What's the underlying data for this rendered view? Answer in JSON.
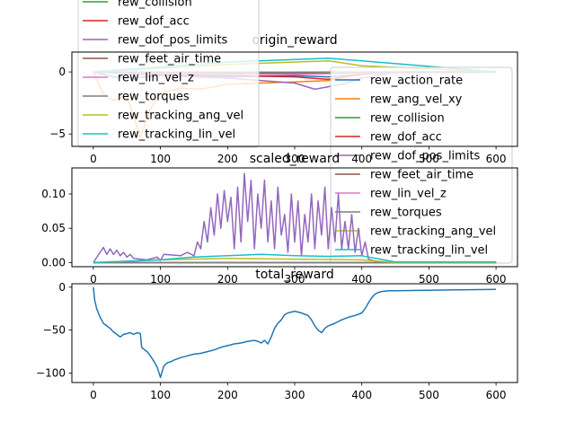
{
  "chart_data": [
    {
      "type": "line",
      "title": "origin_reward",
      "xlabel": "",
      "ylabel": "",
      "xlim": [
        -32,
        632
      ],
      "ylim": [
        -6.0,
        1.6
      ],
      "xticks": [
        0,
        100,
        200,
        300,
        400,
        500,
        600
      ],
      "xtick_labels": [
        "0",
        "100",
        "200",
        "300",
        "400",
        "500",
        "600"
      ],
      "yticks": [
        -5,
        0
      ],
      "ytick_labels": [
        "−5",
        "0"
      ],
      "legends": [
        {
          "placement": "upper-left (overflowing above axes)",
          "entries": [
            "rew_collision",
            "rew_dof_acc",
            "rew_dof_pos_limits",
            "rew_feet_air_time",
            "rew_lin_vel_z",
            "rew_torques",
            "rew_tracking_ang_vel",
            "rew_tracking_lin_vel"
          ]
        },
        {
          "placement": "right",
          "entries": [
            "rew_action_rate",
            "rew_ang_vel_xy",
            "rew_collision",
            "rew_dof_acc",
            "rew_dof_pos_limits",
            "rew_feet_air_time",
            "rew_lin_vel_z",
            "rew_torques",
            "rew_tracking_ang_vel",
            "rew_tracking_lin_vel"
          ]
        }
      ],
      "series": [
        {
          "name": "rew_action_rate",
          "color": "#1f77b4",
          "x": [
            0,
            30,
            60,
            100,
            150,
            200,
            250,
            300,
            350,
            400,
            450,
            500,
            600
          ],
          "y": [
            0,
            -0.4,
            -0.5,
            -0.3,
            -0.3,
            -0.4,
            -0.35,
            -0.3,
            -0.4,
            -0.2,
            -0.05,
            -0.03,
            -0.02
          ]
        },
        {
          "name": "rew_ang_vel_xy",
          "color": "#ff7f0e",
          "x": [
            0,
            15,
            30,
            50,
            70,
            85,
            100,
            130,
            160,
            200,
            250,
            300,
            350,
            400,
            450,
            600
          ],
          "y": [
            0,
            -1.8,
            -2.3,
            -1.9,
            -5.3,
            -3.0,
            -1.7,
            -1.3,
            -1.4,
            -1.0,
            -0.9,
            -0.8,
            -0.7,
            -0.1,
            0,
            0
          ]
        },
        {
          "name": "rew_collision",
          "color": "#2ca02c",
          "x": [
            0,
            100,
            200,
            300,
            400,
            500,
            600
          ],
          "y": [
            0,
            -0.02,
            -0.02,
            -0.02,
            -0.01,
            0,
            0
          ]
        },
        {
          "name": "rew_dof_acc",
          "color": "#d62728",
          "x": [
            0,
            100,
            200,
            300,
            350,
            400,
            450,
            600
          ],
          "y": [
            0,
            -0.2,
            -0.3,
            -0.4,
            -0.6,
            -0.2,
            -0.02,
            -0.01
          ]
        },
        {
          "name": "rew_dof_pos_limits",
          "color": "#9467bd",
          "x": [
            0,
            100,
            200,
            300,
            330,
            370,
            400,
            450,
            600
          ],
          "y": [
            0,
            -0.3,
            -0.5,
            -0.9,
            -1.4,
            -1.0,
            -0.5,
            -0.05,
            -0.02
          ]
        },
        {
          "name": "rew_feet_air_time",
          "color": "#8c564b",
          "x": [
            0,
            100,
            200,
            300,
            400,
            600
          ],
          "y": [
            0,
            -0.05,
            -0.1,
            -0.1,
            -0.05,
            0
          ]
        },
        {
          "name": "rew_lin_vel_z",
          "color": "#e377c2",
          "x": [
            0,
            100,
            200,
            300,
            400,
            600
          ],
          "y": [
            0,
            -0.1,
            -0.2,
            -0.2,
            -0.1,
            0
          ]
        },
        {
          "name": "rew_torques",
          "color": "#7f7f7f",
          "x": [
            0,
            100,
            200,
            300,
            400,
            600
          ],
          "y": [
            0,
            -0.05,
            -0.05,
            -0.05,
            -0.02,
            0
          ]
        },
        {
          "name": "rew_tracking_ang_vel",
          "color": "#bcbd22",
          "x": [
            0,
            100,
            200,
            300,
            350,
            400,
            600
          ],
          "y": [
            0,
            0.3,
            0.6,
            0.8,
            0.9,
            0.5,
            0
          ]
        },
        {
          "name": "rew_tracking_lin_vel",
          "color": "#17becf",
          "x": [
            0,
            100,
            200,
            300,
            350,
            400,
            600
          ],
          "y": [
            0,
            0.4,
            0.8,
            1.0,
            1.1,
            0.9,
            0
          ]
        }
      ]
    },
    {
      "type": "line",
      "title": "scaled_reward",
      "xlabel": "",
      "ylabel": "",
      "xlim": [
        -32,
        632
      ],
      "ylim": [
        -0.006,
        0.138
      ],
      "xticks": [
        0,
        100,
        200,
        300,
        400,
        500,
        600
      ],
      "xtick_labels": [
        "0",
        "100",
        "200",
        "300",
        "400",
        "500",
        "600"
      ],
      "yticks": [
        0.0,
        0.05,
        0.1
      ],
      "ytick_labels": [
        "0.00",
        "0.05",
        "0.10"
      ],
      "series": [
        {
          "name": "rew_action_rate",
          "color": "#1f77b4",
          "x": [
            0,
            600
          ],
          "y": [
            0,
            0
          ]
        },
        {
          "name": "rew_ang_vel_xy",
          "color": "#ff7f0e",
          "x": [
            0,
            600
          ],
          "y": [
            0,
            0
          ]
        },
        {
          "name": "rew_collision",
          "color": "#2ca02c",
          "x": [
            0,
            600
          ],
          "y": [
            0,
            0
          ]
        },
        {
          "name": "rew_dof_acc",
          "color": "#d62728",
          "x": [
            0,
            600
          ],
          "y": [
            0,
            0
          ]
        },
        {
          "name": "rew_dof_pos_limits",
          "color": "#9467bd",
          "x": [
            0,
            10,
            15,
            20,
            25,
            30,
            35,
            40,
            45,
            50,
            55,
            60,
            70,
            80,
            95,
            100,
            105,
            130,
            140,
            150,
            155,
            160,
            165,
            170,
            175,
            180,
            185,
            190,
            195,
            200,
            205,
            210,
            215,
            220,
            225,
            230,
            235,
            240,
            245,
            250,
            255,
            260,
            265,
            270,
            275,
            280,
            285,
            290,
            295,
            300,
            305,
            310,
            315,
            320,
            325,
            330,
            335,
            340,
            345,
            350,
            355,
            360,
            365,
            370,
            375,
            380,
            385,
            390,
            395,
            400,
            405,
            410,
            420,
            430,
            600
          ],
          "y": [
            0,
            0.015,
            0.022,
            0.012,
            0.02,
            0.012,
            0.018,
            0.01,
            0.015,
            0.008,
            0.012,
            0.006,
            0.005,
            0.004,
            0.008,
            0.003,
            0.012,
            0.01,
            0.015,
            0.01,
            0.03,
            0.02,
            0.06,
            0.03,
            0.08,
            0.04,
            0.1,
            0.05,
            0.105,
            0.06,
            0.095,
            0.02,
            0.11,
            0.03,
            0.13,
            0.06,
            0.12,
            0.02,
            0.1,
            0.05,
            0.12,
            0.03,
            0.09,
            0.02,
            0.11,
            0.04,
            0.07,
            0.015,
            0.1,
            0.03,
            0.09,
            0.01,
            0.07,
            0.03,
            0.1,
            0.02,
            0.09,
            0.04,
            0.11,
            0.02,
            0.08,
            0.03,
            0.1,
            0.02,
            0.06,
            0.02,
            0.07,
            0.015,
            0.05,
            0.01,
            0.03,
            0.005,
            0.002,
            0,
            0
          ]
        },
        {
          "name": "rew_feet_air_time",
          "color": "#8c564b",
          "x": [
            0,
            600
          ],
          "y": [
            0,
            0
          ]
        },
        {
          "name": "rew_lin_vel_z",
          "color": "#e377c2",
          "x": [
            0,
            600
          ],
          "y": [
            0,
            0
          ]
        },
        {
          "name": "rew_torques",
          "color": "#7f7f7f",
          "x": [
            0,
            600
          ],
          "y": [
            0,
            0
          ]
        },
        {
          "name": "rew_tracking_ang_vel",
          "color": "#bcbd22",
          "x": [
            0,
            100,
            200,
            300,
            400,
            450,
            600
          ],
          "y": [
            0,
            0.004,
            0.006,
            0.005,
            0.004,
            0,
            0
          ]
        },
        {
          "name": "rew_tracking_lin_vel",
          "color": "#17becf",
          "x": [
            0,
            100,
            150,
            200,
            250,
            300,
            350,
            400,
            450,
            600
          ],
          "y": [
            0,
            0.004,
            0.008,
            0.01,
            0.012,
            0.01,
            0.009,
            0.01,
            0.001,
            0.001
          ]
        }
      ]
    },
    {
      "type": "line",
      "title": "total_reward",
      "xlabel": "",
      "ylabel": "",
      "xlim": [
        -32,
        632
      ],
      "ylim": [
        -111,
        4
      ],
      "xticks": [
        0,
        100,
        200,
        300,
        400,
        500,
        600
      ],
      "xtick_labels": [
        "0",
        "100",
        "200",
        "300",
        "400",
        "500",
        "600"
      ],
      "yticks": [
        -100,
        -50,
        0
      ],
      "ytick_labels": [
        "−100",
        "−50",
        "0"
      ],
      "series": [
        {
          "name": "",
          "color": "#1f77b4",
          "x": [
            0,
            2,
            5,
            10,
            15,
            20,
            25,
            30,
            35,
            40,
            45,
            50,
            55,
            60,
            65,
            70,
            72,
            75,
            80,
            85,
            90,
            95,
            98,
            100,
            105,
            110,
            115,
            120,
            130,
            140,
            150,
            160,
            170,
            180,
            190,
            200,
            210,
            220,
            230,
            240,
            245,
            250,
            255,
            260,
            265,
            270,
            275,
            280,
            285,
            290,
            300,
            310,
            320,
            325,
            330,
            335,
            340,
            345,
            350,
            360,
            370,
            380,
            390,
            400,
            405,
            410,
            415,
            420,
            425,
            430,
            440,
            450,
            500,
            550,
            600
          ],
          "y": [
            0,
            -15,
            -25,
            -35,
            -42,
            -45,
            -48,
            -52,
            -55,
            -58,
            -55,
            -54,
            -53,
            -55,
            -53,
            -54,
            -70,
            -72,
            -75,
            -80,
            -86,
            -93,
            -100,
            -105,
            -92,
            -88,
            -87,
            -85,
            -82,
            -80,
            -78,
            -77,
            -75,
            -73,
            -70,
            -68,
            -66,
            -65,
            -63,
            -62,
            -63,
            -65,
            -62,
            -66,
            -58,
            -48,
            -42,
            -38,
            -32,
            -30,
            -28,
            -30,
            -33,
            -38,
            -45,
            -50,
            -53,
            -48,
            -45,
            -42,
            -38,
            -35,
            -33,
            -30,
            -25,
            -18,
            -12,
            -8,
            -6,
            -5,
            -4,
            -4,
            -3.5,
            -3,
            -2.5
          ]
        }
      ]
    }
  ]
}
